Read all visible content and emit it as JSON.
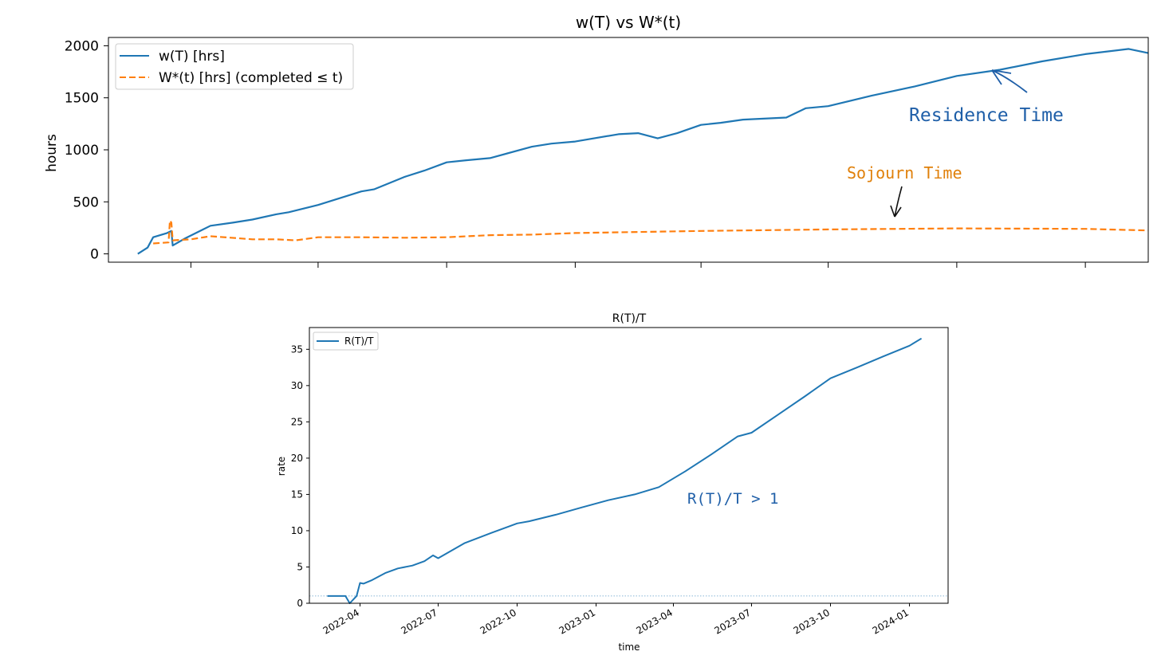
{
  "chart_data": [
    {
      "type": "line",
      "title": "w(T) vs W*(t)",
      "xlabel": "",
      "ylabel": "hours",
      "x_range": [
        "2022-02-01",
        "2024-02-15"
      ],
      "xticks": [
        "2022-04-01",
        "2022-07-01",
        "2022-10-01",
        "2023-01-01",
        "2023-04-01",
        "2023-07-01",
        "2023-10-01",
        "2024-01-01"
      ],
      "ylim": [
        -80,
        2080
      ],
      "yticks": [
        "0",
        "500",
        "1000",
        "1500",
        "2000"
      ],
      "legend_position": "top-left",
      "series": [
        {
          "name": "w(T) [hrs]",
          "color": "#1f77b4",
          "style": "solid",
          "x": [
            "2022-02-22",
            "2022-03-01",
            "2022-03-05",
            "2022-03-15",
            "2022-03-18",
            "2022-03-19",
            "2022-03-28",
            "2022-04-15",
            "2022-05-01",
            "2022-05-15",
            "2022-06-01",
            "2022-06-10",
            "2022-07-01",
            "2022-08-01",
            "2022-08-10",
            "2022-09-01",
            "2022-09-15",
            "2022-10-01",
            "2022-10-15",
            "2022-11-01",
            "2022-12-01",
            "2022-12-15",
            "2023-01-01",
            "2023-02-01",
            "2023-02-15",
            "2023-03-01",
            "2023-03-15",
            "2023-04-01",
            "2023-04-15",
            "2023-05-01",
            "2023-06-01",
            "2023-06-15",
            "2023-07-01",
            "2023-08-01",
            "2023-09-01",
            "2023-10-01",
            "2023-11-01",
            "2023-12-01",
            "2024-01-01",
            "2024-02-01",
            "2024-02-15"
          ],
          "values": [
            0,
            60,
            160,
            200,
            220,
            80,
            150,
            270,
            300,
            330,
            380,
            400,
            470,
            600,
            620,
            740,
            800,
            880,
            900,
            920,
            1030,
            1060,
            1080,
            1150,
            1160,
            1110,
            1160,
            1240,
            1260,
            1290,
            1310,
            1400,
            1420,
            1520,
            1610,
            1710,
            1770,
            1850,
            1920,
            1970,
            1930
          ]
        },
        {
          "name": "W*(t) [hrs] (completed ≤ t)",
          "color": "#ff7f0e",
          "style": "dashed",
          "x": [
            "2022-03-05",
            "2022-03-16",
            "2022-03-17",
            "2022-03-18",
            "2022-03-19",
            "2022-04-01",
            "2022-04-15",
            "2022-05-15",
            "2022-06-01",
            "2022-06-15",
            "2022-07-01",
            "2022-08-01",
            "2022-09-01",
            "2022-10-01",
            "2022-11-01",
            "2022-12-01",
            "2023-01-01",
            "2023-04-01",
            "2023-07-01",
            "2023-10-01",
            "2024-01-01",
            "2024-02-15"
          ],
          "values": [
            100,
            110,
            320,
            300,
            130,
            140,
            170,
            140,
            140,
            130,
            160,
            160,
            155,
            160,
            180,
            185,
            200,
            220,
            235,
            245,
            240,
            225
          ]
        }
      ],
      "annotations": [
        {
          "text": "Residence Time",
          "color": "#1f5fa8"
        },
        {
          "text": "Sojourn Time",
          "color": "#e0800a"
        }
      ]
    },
    {
      "type": "line",
      "title": "R(T)/T",
      "xlabel": "time",
      "ylabel": "rate",
      "x_range": [
        "2022-02-01",
        "2024-02-15"
      ],
      "xticks": [
        "2022-04-01",
        "2022-07-01",
        "2022-10-01",
        "2023-01-01",
        "2023-04-01",
        "2023-07-01",
        "2023-10-01",
        "2024-01-01"
      ],
      "xtick_labels": [
        "2022-04",
        "2022-07",
        "2022-10",
        "2023-01",
        "2023-04",
        "2023-07",
        "2023-10",
        "2024-01"
      ],
      "ylim": [
        0,
        38
      ],
      "yticks": [
        "0",
        "5",
        "10",
        "15",
        "20",
        "25",
        "30",
        "35"
      ],
      "reference_line": 1,
      "legend_position": "top-left",
      "series": [
        {
          "name": "R(T)/T",
          "color": "#1f77b4",
          "style": "solid",
          "x": [
            "2022-02-22",
            "2022-03-15",
            "2022-03-20",
            "2022-03-28",
            "2022-04-01",
            "2022-04-05",
            "2022-04-15",
            "2022-05-01",
            "2022-05-15",
            "2022-06-01",
            "2022-06-15",
            "2022-06-25",
            "2022-07-01",
            "2022-08-01",
            "2022-09-01",
            "2022-10-01",
            "2022-10-15",
            "2022-11-15",
            "2022-12-15",
            "2023-01-15",
            "2023-02-15",
            "2023-03-15",
            "2023-04-15",
            "2023-05-15",
            "2023-06-15",
            "2023-07-01",
            "2023-08-01",
            "2023-09-01",
            "2023-10-01",
            "2023-11-01",
            "2023-12-01",
            "2024-01-01",
            "2024-01-15"
          ],
          "values": [
            1,
            1,
            0,
            1,
            2.8,
            2.7,
            3.2,
            4.2,
            4.8,
            5.2,
            5.8,
            6.6,
            6.2,
            8.3,
            9.7,
            11,
            11.3,
            12.2,
            13.2,
            14.2,
            15,
            16,
            18.2,
            20.5,
            23,
            23.5,
            26,
            28.5,
            31,
            32.5,
            34,
            35.5,
            36.5
          ]
        }
      ],
      "annotations": [
        {
          "text": "R(T)/T > 1",
          "color": "#1f5fa8"
        }
      ]
    }
  ]
}
